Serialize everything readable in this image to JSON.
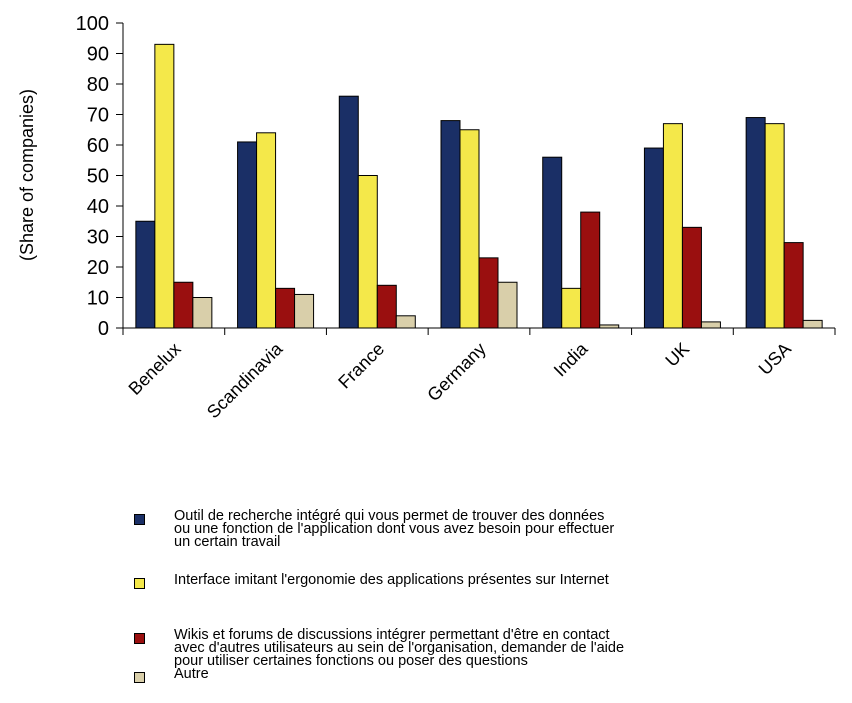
{
  "chart_data": {
    "type": "bar",
    "ylabel": "(Share of companies)",
    "ylim": [
      0,
      100
    ],
    "yticks": [
      0,
      10,
      20,
      30,
      40,
      50,
      60,
      70,
      80,
      90,
      100
    ],
    "categories": [
      "Benelux",
      "Scandinavia",
      "France",
      "Germany",
      "India",
      "UK",
      "USA"
    ],
    "series": [
      {
        "name": "Outil de recherche intégré qui vous permet de trouver des données ou une fonction de l'application dont vous avez besoin pour effectuer un certain travail",
        "color": "#1a2f66",
        "values": [
          35,
          61,
          76,
          68,
          56,
          59,
          69
        ]
      },
      {
        "name": "Interface imitant l'ergonomie des applications présentes sur Internet",
        "color": "#f4e84a",
        "values": [
          93,
          64,
          50,
          65,
          13,
          67,
          67
        ]
      },
      {
        "name": "Wikis et forums de discussions intégrer permettant d'être en contact avec d'autres utilisateurs au sein de l'organisation, demander de l'aide pour utiliser certaines fonctions ou poser des questions",
        "color": "#9a0f0f",
        "values": [
          15,
          13,
          14,
          23,
          38,
          33,
          28
        ]
      },
      {
        "name": "Autre",
        "color": "#d9cfaa",
        "values": [
          10,
          11,
          4,
          15,
          1,
          2,
          2.5
        ]
      }
    ],
    "grid": false,
    "legend": "bottom"
  },
  "legend_lines": [
    [
      "Outil de recherche intégré qui vous permet de trouver des données",
      "ou une fonction de l'application dont vous avez besoin pour effectuer",
      "un certain travail"
    ],
    [
      "Interface imitant l'ergonomie des applications présentes sur Internet"
    ],
    [
      "Wikis et forums de discussions intégrer permettant d'être en contact",
      "avec d'autres utilisateurs au sein de l'organisation, demander de l'aide",
      "pour utiliser certaines fonctions ou poser des questions"
    ],
    [
      "Autre"
    ]
  ]
}
